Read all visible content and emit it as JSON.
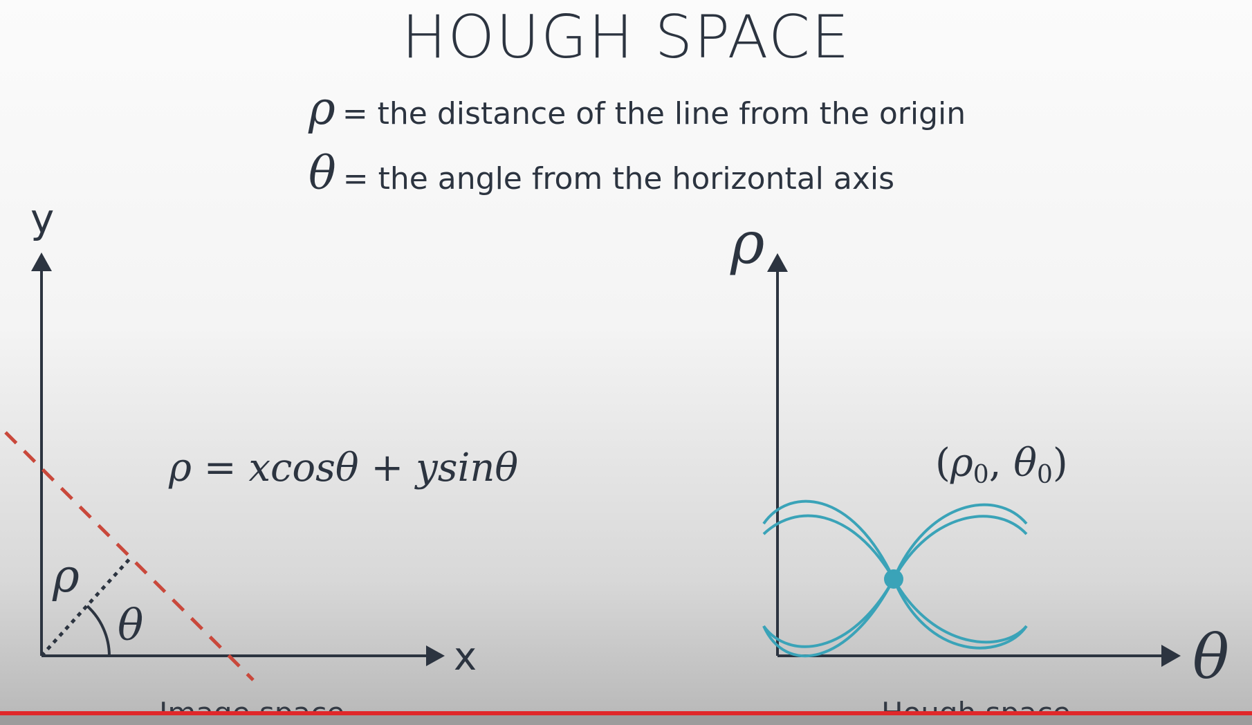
{
  "title": "HOUGH SPACE",
  "definitions": [
    {
      "symbol": "ρ",
      "text": "= the distance of the line from the origin"
    },
    {
      "symbol": "θ",
      "text": "= the angle from the horizontal axis"
    }
  ],
  "image_space": {
    "y_axis_label": "y",
    "x_axis_label": "x",
    "rho_label": "ρ",
    "theta_label": "θ",
    "equation": "ρ = xcosθ + ysinθ",
    "caption": "Image space",
    "line_color": "#c9483b",
    "axis_color": "#2c3440"
  },
  "hough_space": {
    "y_axis_label": "ρ",
    "x_axis_label": "θ",
    "point_label": "(ρ0, θ0)",
    "caption": "Hough space",
    "curve_color": "#3aa3b8",
    "axis_color": "#2c3440"
  },
  "accent": {
    "progress_bar_color": "#e0282a"
  }
}
